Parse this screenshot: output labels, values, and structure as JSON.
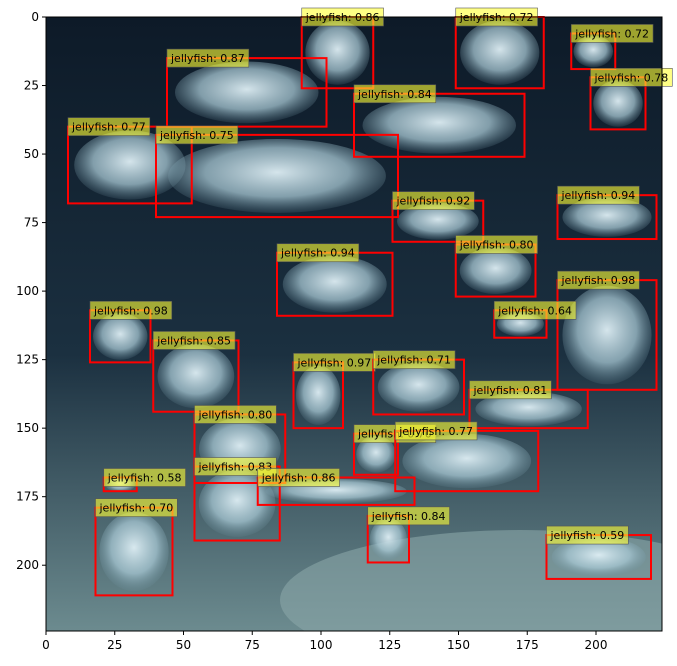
{
  "chart_data": {
    "type": "scatter",
    "title": "",
    "xlabel": "",
    "ylabel": "",
    "xlim": [
      0,
      224
    ],
    "ylim": [
      224,
      0
    ],
    "x_ticks": [
      0,
      25,
      50,
      75,
      100,
      125,
      150,
      175,
      200
    ],
    "y_ticks": [
      0,
      25,
      50,
      75,
      100,
      125,
      150,
      175,
      200
    ],
    "x_tick_labels": [
      "0",
      "25",
      "50",
      "75",
      "100",
      "125",
      "150",
      "175",
      "200"
    ],
    "y_tick_labels": [
      "0",
      "25",
      "50",
      "75",
      "100",
      "125",
      "150",
      "175",
      "200"
    ],
    "grid": false,
    "box_color": "#ff0000",
    "label_bg_color": "#ffff33",
    "background": "photo of moon jellyfish in an aquarium tank",
    "detections": [
      {
        "label": "jellyfish: 0.86",
        "x0": 93,
        "y0": 0,
        "x1": 119,
        "y1": 26
      },
      {
        "label": "jellyfish: 0.72",
        "x0": 149,
        "y0": 0,
        "x1": 181,
        "y1": 26
      },
      {
        "label": "jellyfish: 0.72",
        "x0": 191,
        "y0": 6,
        "x1": 207,
        "y1": 19
      },
      {
        "label": "jellyfish: 0.87",
        "x0": 44,
        "y0": 15,
        "x1": 102,
        "y1": 40
      },
      {
        "label": "jellyfish: 0.78",
        "x0": 198,
        "y0": 22,
        "x1": 218,
        "y1": 41
      },
      {
        "label": "jellyfish: 0.84",
        "x0": 112,
        "y0": 28,
        "x1": 174,
        "y1": 51
      },
      {
        "label": "jellyfish: 0.77",
        "x0": 8,
        "y0": 40,
        "x1": 53,
        "y1": 68
      },
      {
        "label": "jellyfish: 0.75",
        "x0": 40,
        "y0": 43,
        "x1": 128,
        "y1": 73
      },
      {
        "label": "jellyfish: 0.92",
        "x0": 126,
        "y0": 67,
        "x1": 159,
        "y1": 82
      },
      {
        "label": "jellyfish: 0.94",
        "x0": 186,
        "y0": 65,
        "x1": 222,
        "y1": 81
      },
      {
        "label": "jellyfish: 0.80",
        "x0": 149,
        "y0": 83,
        "x1": 178,
        "y1": 102
      },
      {
        "label": "jellyfish: 0.94",
        "x0": 84,
        "y0": 86,
        "x1": 126,
        "y1": 109
      },
      {
        "label": "jellyfish: 0.98",
        "x0": 186,
        "y0": 96,
        "x1": 222,
        "y1": 136
      },
      {
        "label": "jellyfish: 0.98",
        "x0": 16,
        "y0": 107,
        "x1": 38,
        "y1": 126
      },
      {
        "label": "jellyfish: 0.64",
        "x0": 163,
        "y0": 107,
        "x1": 182,
        "y1": 117
      },
      {
        "label": "jellyfish: 0.85",
        "x0": 39,
        "y0": 118,
        "x1": 70,
        "y1": 144
      },
      {
        "label": "jellyfish: 0.97",
        "x0": 90,
        "y0": 126,
        "x1": 108,
        "y1": 150
      },
      {
        "label": "jellyfish: 0.71",
        "x0": 119,
        "y0": 125,
        "x1": 152,
        "y1": 145
      },
      {
        "label": "jellyfish: 0.81",
        "x0": 154,
        "y0": 136,
        "x1": 197,
        "y1": 150
      },
      {
        "label": "jellyfish: 0.80",
        "x0": 54,
        "y0": 145,
        "x1": 87,
        "y1": 170
      },
      {
        "label": "jellyfish: 0.70",
        "x0": 112,
        "y0": 152,
        "x1": 128,
        "y1": 167
      },
      {
        "label": "jellyfish: 0.77",
        "x0": 127,
        "y0": 151,
        "x1": 179,
        "y1": 173
      },
      {
        "label": "jellyfish: 0.83",
        "x0": 54,
        "y0": 164,
        "x1": 85,
        "y1": 191
      },
      {
        "label": "jellyfish: 0.86",
        "x0": 77,
        "y0": 168,
        "x1": 134,
        "y1": 178
      },
      {
        "label": "jellyfish: 0.58",
        "x0": 21,
        "y0": 168,
        "x1": 33,
        "y1": 173
      },
      {
        "label": "jellyfish: 0.70",
        "x0": 18,
        "y0": 179,
        "x1": 46,
        "y1": 211
      },
      {
        "label": "jellyfish: 0.84",
        "x0": 117,
        "y0": 182,
        "x1": 132,
        "y1": 199
      },
      {
        "label": "jellyfish: 0.59",
        "x0": 182,
        "y0": 189,
        "x1": 220,
        "y1": 205
      }
    ]
  }
}
